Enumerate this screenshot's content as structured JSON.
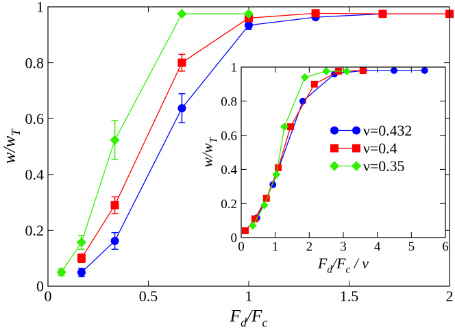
{
  "chart_data": [
    {
      "type": "line",
      "xlabel": [
        "F",
        "d",
        "/F",
        "c"
      ],
      "ylabel": [
        "w/w",
        "T"
      ],
      "xlim": [
        0,
        2
      ],
      "ylim": [
        0,
        1
      ],
      "xticks": [
        0,
        0.5,
        1,
        1.5,
        2
      ],
      "yticks": [
        0,
        0.2,
        0.4,
        0.6,
        0.8,
        1
      ],
      "series": [
        {
          "color": "#0000ff",
          "marker": "circle",
          "x": [
            0.167,
            0.333,
            0.667,
            1.0,
            1.333,
            1.667,
            2.0
          ],
          "values": [
            0.049,
            0.162,
            0.637,
            0.934,
            0.963,
            0.975,
            0.975
          ],
          "errors": [
            0.015,
            0.03,
            0.052,
            0.015,
            0,
            0,
            0
          ]
        },
        {
          "color": "#ff0000",
          "marker": "square",
          "x": [
            0.167,
            0.333,
            0.667,
            1.0,
            1.333,
            1.667,
            2.0
          ],
          "values": [
            0.1,
            0.29,
            0.8,
            0.96,
            0.977,
            0.975,
            0.975
          ],
          "errors": [
            0.015,
            0.03,
            0.03,
            0.01,
            0,
            0,
            0
          ]
        },
        {
          "color": "#33ee00",
          "marker": "diamond",
          "x": [
            0.067,
            0.167,
            0.333,
            0.667,
            1.0
          ],
          "values": [
            0.05,
            0.157,
            0.523,
            0.975,
            0.975
          ],
          "errors": [
            0.012,
            0.025,
            0.07,
            0,
            0
          ]
        }
      ]
    },
    {
      "type": "line",
      "xlabel": [
        "F",
        "d",
        "/F",
        "c",
        " / ν"
      ],
      "ylabel": [
        "w/w",
        "T"
      ],
      "xlim": [
        0,
        6
      ],
      "ylim": [
        0,
        1
      ],
      "xticks": [
        0,
        1,
        2,
        3,
        4,
        5,
        6
      ],
      "yticks": [
        0,
        0.2,
        0.4,
        0.6,
        0.8,
        1
      ],
      "legend": "center right",
      "series": [
        {
          "name": "ν=0.432",
          "color": "#0000ff",
          "marker": "circle",
          "x": [
            0.46,
            0.93,
            1.81,
            2.74,
            3.6,
            4.49,
            5.39
          ],
          "values": [
            0.116,
            0.31,
            0.8,
            0.96,
            0.98,
            0.98,
            0.98
          ]
        },
        {
          "name": "ν=0.4",
          "color": "#ff0000",
          "marker": "square",
          "x": [
            0.12,
            0.4,
            0.74,
            1.09,
            1.45,
            2.15,
            2.86,
            3.58
          ],
          "values": [
            0.04,
            0.11,
            0.23,
            0.41,
            0.65,
            0.9,
            0.976,
            0.98
          ]
        },
        {
          "name": "ν=0.35",
          "color": "#33ee00",
          "marker": "diamond",
          "x": [
            0.34,
            0.68,
            1.03,
            1.27,
            1.87,
            2.5,
            3.1
          ],
          "values": [
            0.07,
            0.19,
            0.37,
            0.65,
            0.94,
            0.976,
            0.976
          ]
        }
      ]
    }
  ]
}
